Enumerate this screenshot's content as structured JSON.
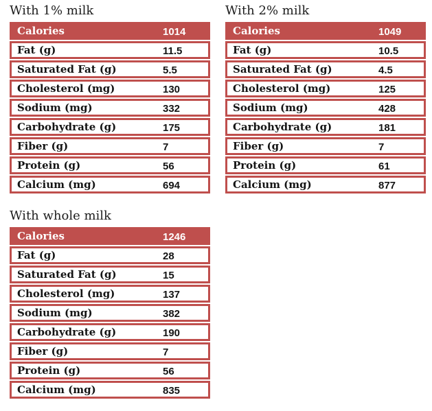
{
  "colors": {
    "accent_red": "#bf4f4d",
    "header_text": "#ffffff",
    "row_text": "#141414",
    "title_text": "#1d1d1d",
    "background": "#ffffff"
  },
  "tables": [
    {
      "title": "With 1% milk",
      "header": {
        "label": "Calories",
        "value": "1014"
      },
      "rows": [
        {
          "label": "Fat (g)",
          "value": "11.5"
        },
        {
          "label": "Saturated Fat (g)",
          "value": "5.5"
        },
        {
          "label": "Cholesterol (mg)",
          "value": "130"
        },
        {
          "label": "Sodium (mg)",
          "value": "332"
        },
        {
          "label": "Carbohydrate (g)",
          "value": "175"
        },
        {
          "label": "Fiber (g)",
          "value": "7"
        },
        {
          "label": "Protein (g)",
          "value": "56"
        },
        {
          "label": "Calcium (mg)",
          "value": "694"
        }
      ]
    },
    {
      "title": "With 2% milk",
      "header": {
        "label": "Calories",
        "value": "1049"
      },
      "rows": [
        {
          "label": "Fat (g)",
          "value": "10.5"
        },
        {
          "label": "Saturated Fat (g)",
          "value": "4.5"
        },
        {
          "label": "Cholesterol (mg)",
          "value": "125"
        },
        {
          "label": "Sodium (mg)",
          "value": "428"
        },
        {
          "label": "Carbohydrate (g)",
          "value": "181"
        },
        {
          "label": "Fiber (g)",
          "value": "7"
        },
        {
          "label": "Protein (g)",
          "value": "61"
        },
        {
          "label": "Calcium (mg)",
          "value": "877"
        }
      ]
    },
    {
      "title": "With whole milk",
      "header": {
        "label": "Calories",
        "value": "1246"
      },
      "rows": [
        {
          "label": "Fat (g)",
          "value": "28"
        },
        {
          "label": "Saturated Fat (g)",
          "value": "15"
        },
        {
          "label": "Cholesterol (mg)",
          "value": "137"
        },
        {
          "label": "Sodium (mg)",
          "value": "382"
        },
        {
          "label": "Carbohydrate (g)",
          "value": "190"
        },
        {
          "label": "Fiber (g)",
          "value": "7"
        },
        {
          "label": "Protein (g)",
          "value": "56"
        },
        {
          "label": "Calcium (mg)",
          "value": "835"
        }
      ]
    }
  ],
  "chart_data": [
    {
      "type": "table",
      "title": "With 1% milk",
      "columns": [
        "Nutrient",
        "Amount"
      ],
      "rows": [
        [
          "Calories",
          1014
        ],
        [
          "Fat (g)",
          11.5
        ],
        [
          "Saturated Fat (g)",
          5.5
        ],
        [
          "Cholesterol (mg)",
          130
        ],
        [
          "Sodium (mg)",
          332
        ],
        [
          "Carbohydrate (g)",
          175
        ],
        [
          "Fiber (g)",
          7
        ],
        [
          "Protein (g)",
          56
        ],
        [
          "Calcium (mg)",
          694
        ]
      ]
    },
    {
      "type": "table",
      "title": "With 2% milk",
      "columns": [
        "Nutrient",
        "Amount"
      ],
      "rows": [
        [
          "Calories",
          1049
        ],
        [
          "Fat (g)",
          10.5
        ],
        [
          "Saturated Fat (g)",
          4.5
        ],
        [
          "Cholesterol (mg)",
          125
        ],
        [
          "Sodium (mg)",
          428
        ],
        [
          "Carbohydrate (g)",
          181
        ],
        [
          "Fiber (g)",
          7
        ],
        [
          "Protein (g)",
          61
        ],
        [
          "Calcium (mg)",
          877
        ]
      ]
    },
    {
      "type": "table",
      "title": "With whole milk",
      "columns": [
        "Nutrient",
        "Amount"
      ],
      "rows": [
        [
          "Calories",
          1246
        ],
        [
          "Fat (g)",
          28
        ],
        [
          "Saturated Fat (g)",
          15
        ],
        [
          "Cholesterol (mg)",
          137
        ],
        [
          "Sodium (mg)",
          382
        ],
        [
          "Carbohydrate (g)",
          190
        ],
        [
          "Fiber (g)",
          7
        ],
        [
          "Protein (g)",
          56
        ],
        [
          "Calcium (mg)",
          835
        ]
      ]
    }
  ]
}
